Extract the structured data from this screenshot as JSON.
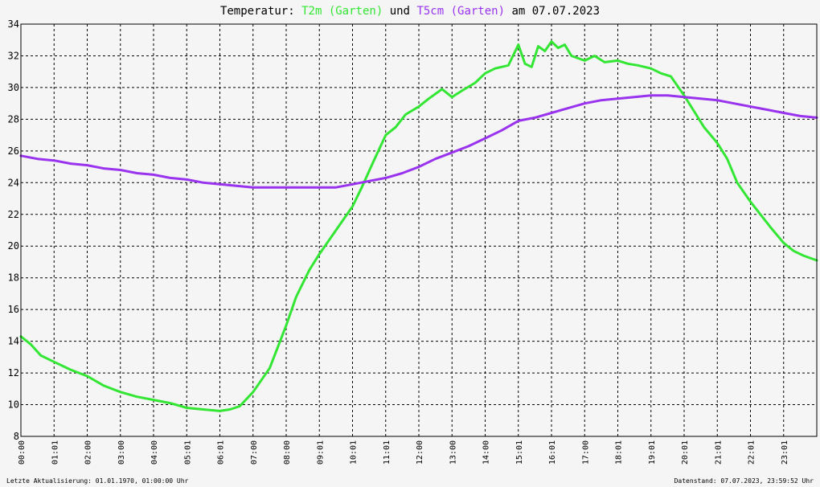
{
  "chart_data": {
    "type": "line",
    "title_parts": {
      "prefix": "Temperatur:",
      "series1": "T2m (Garten)",
      "conj": "und",
      "series2": "T5cm (Garten)",
      "suffix": "am 07.07.2023"
    },
    "ylim": [
      8,
      34
    ],
    "y_ticks": [
      8,
      10,
      12,
      14,
      16,
      18,
      20,
      22,
      24,
      26,
      28,
      30,
      32,
      34
    ],
    "x_range_hours": [
      0,
      24
    ],
    "x_tick_labels": [
      "00:00",
      "01:01",
      "02:00",
      "03:00",
      "04:00",
      "05:01",
      "06:01",
      "07:00",
      "08:00",
      "09:01",
      "10:01",
      "11:01",
      "12:00",
      "13:00",
      "14:00",
      "15:01",
      "16:01",
      "17:00",
      "18:01",
      "19:01",
      "20:01",
      "21:01",
      "22:01",
      "23:01"
    ],
    "x_tick_hours": [
      0,
      1,
      2,
      3,
      4,
      5,
      6,
      7,
      8,
      9,
      10,
      11,
      12,
      13,
      14,
      15,
      16,
      17,
      18,
      19,
      20,
      21,
      22,
      23
    ],
    "grid": true,
    "background_color": "#f5f5f5",
    "series": [
      {
        "name": "T2m (Garten)",
        "color": "#33e633",
        "x_hours": [
          0,
          0.3,
          0.6,
          1,
          1.5,
          2,
          2.5,
          3,
          3.5,
          4,
          4.5,
          5,
          5.5,
          6,
          6.3,
          6.6,
          7,
          7.5,
          8,
          8.3,
          8.7,
          9,
          9.5,
          10,
          10.3,
          10.6,
          11,
          11.3,
          11.6,
          12,
          12.3,
          12.7,
          13,
          13.3,
          13.7,
          14,
          14.3,
          14.7,
          15,
          15.2,
          15.4,
          15.6,
          15.8,
          16,
          16.2,
          16.4,
          16.6,
          17,
          17.3,
          17.6,
          18,
          18.3,
          18.6,
          19,
          19.3,
          19.6,
          20,
          20.3,
          20.6,
          21,
          21.3,
          21.6,
          22,
          22.3,
          22.6,
          23,
          23.3,
          23.6,
          24
        ],
        "values": [
          14.3,
          13.8,
          13.1,
          12.7,
          12.2,
          11.8,
          11.2,
          10.8,
          10.5,
          10.3,
          10.1,
          9.8,
          9.7,
          9.6,
          9.7,
          9.9,
          10.8,
          12.3,
          15.0,
          16.8,
          18.5,
          19.5,
          21.0,
          22.5,
          23.8,
          25.2,
          27.0,
          27.5,
          28.3,
          28.8,
          29.3,
          29.9,
          29.4,
          29.8,
          30.3,
          30.9,
          31.2,
          31.4,
          32.7,
          31.5,
          31.3,
          32.6,
          32.3,
          32.9,
          32.5,
          32.7,
          32.0,
          31.7,
          32.0,
          31.6,
          31.7,
          31.5,
          31.4,
          31.2,
          30.9,
          30.7,
          29.5,
          28.5,
          27.5,
          26.5,
          25.5,
          24.0,
          22.8,
          22.0,
          21.2,
          20.2,
          19.7,
          19.4,
          19.1
        ]
      },
      {
        "name": "T5cm (Garten)",
        "color": "#9933ee",
        "x_hours": [
          0,
          0.5,
          1,
          1.5,
          2,
          2.5,
          3,
          3.5,
          4,
          4.5,
          5,
          5.5,
          6,
          6.5,
          7,
          7.5,
          8,
          8.5,
          9,
          9.5,
          10,
          10.5,
          11,
          11.5,
          12,
          12.5,
          13,
          13.5,
          14,
          14.5,
          15,
          15.5,
          16,
          16.5,
          17,
          17.5,
          18,
          18.5,
          19,
          19.5,
          20,
          20.5,
          21,
          21.5,
          22,
          22.5,
          23,
          23.5,
          24
        ],
        "values": [
          25.7,
          25.5,
          25.4,
          25.2,
          25.1,
          24.9,
          24.8,
          24.6,
          24.5,
          24.3,
          24.2,
          24.0,
          23.9,
          23.8,
          23.7,
          23.7,
          23.7,
          23.7,
          23.7,
          23.7,
          23.9,
          24.1,
          24.3,
          24.6,
          25.0,
          25.5,
          25.9,
          26.3,
          26.8,
          27.3,
          27.9,
          28.1,
          28.4,
          28.7,
          29.0,
          29.2,
          29.3,
          29.4,
          29.5,
          29.5,
          29.4,
          29.3,
          29.2,
          29.0,
          28.8,
          28.6,
          28.4,
          28.2,
          28.1
        ]
      }
    ]
  },
  "footer": {
    "left": "Letzte Aktualisierung: 01.01.1970, 01:00:00 Uhr",
    "right": "Datenstand: 07.07.2023, 23:59:52 Uhr"
  }
}
